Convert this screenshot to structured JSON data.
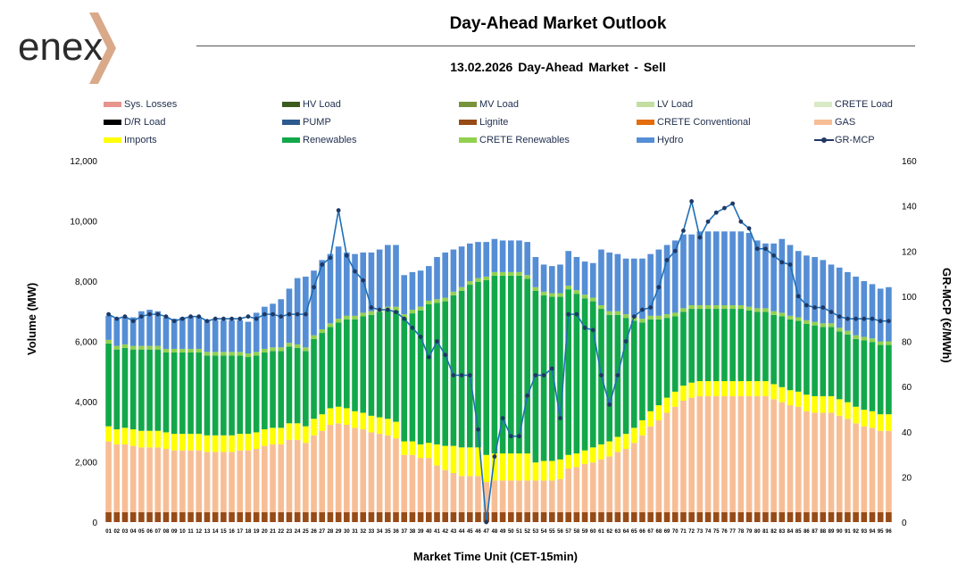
{
  "logo": {
    "text": "enex",
    "accent_color": "#d9a98a"
  },
  "header": {
    "title": "Day-Ahead Market Outlook",
    "subtitle": "13.02.2026  Day-Ahead Market - Sell"
  },
  "chart_data": {
    "type": "bar",
    "stacked": true,
    "title": "13.02.2026  Day-Ahead Market - Sell",
    "xlabel": "Market Time Unit (CET-15min)",
    "ylabel": "Volume (MW)",
    "y2label": "GR-MCP (€/MWh)",
    "ylim": [
      0,
      12000
    ],
    "y2lim": [
      0,
      160
    ],
    "yticks": [
      "0",
      "2,000",
      "4,000",
      "6,000",
      "8,000",
      "10,000",
      "12,000"
    ],
    "y2ticks": [
      "0",
      "20",
      "40",
      "60",
      "80",
      "100",
      "120",
      "140",
      "160"
    ],
    "grid": false,
    "categories": [
      "01",
      "02",
      "03",
      "04",
      "05",
      "06",
      "07",
      "08",
      "09",
      "10",
      "11",
      "12",
      "13",
      "14",
      "15",
      "16",
      "17",
      "18",
      "19",
      "20",
      "21",
      "22",
      "23",
      "24",
      "25",
      "26",
      "27",
      "28",
      "29",
      "30",
      "31",
      "32",
      "33",
      "34",
      "35",
      "36",
      "37",
      "38",
      "39",
      "40",
      "41",
      "42",
      "43",
      "44",
      "45",
      "46",
      "47",
      "48",
      "49",
      "50",
      "51",
      "52",
      "53",
      "54",
      "55",
      "56",
      "57",
      "58",
      "59",
      "60",
      "61",
      "62",
      "63",
      "64",
      "65",
      "66",
      "67",
      "68",
      "69",
      "70",
      "71",
      "72",
      "73",
      "74",
      "75",
      "76",
      "77",
      "78",
      "79",
      "80",
      "81",
      "82",
      "83",
      "84",
      "85",
      "86",
      "87",
      "88",
      "89",
      "90",
      "91",
      "92",
      "93",
      "94",
      "95",
      "96"
    ],
    "legend": [
      {
        "name": "Sys. Losses",
        "color": "#e6948c"
      },
      {
        "name": "HV Load",
        "color": "#3d5a1f"
      },
      {
        "name": "MV Load",
        "color": "#77933c"
      },
      {
        "name": "LV Load",
        "color": "#c3dea0"
      },
      {
        "name": "CRETE Load",
        "color": "#d8eac6"
      },
      {
        "name": "D/R Load",
        "color": "#000000"
      },
      {
        "name": "PUMP",
        "color": "#2e5b8f"
      },
      {
        "name": "Lignite",
        "color": "#974b17"
      },
      {
        "name": "CRETE Conventional",
        "color": "#e46c0a"
      },
      {
        "name": "GAS",
        "color": "#f7be96"
      },
      {
        "name": "Imports",
        "color": "#ffff00"
      },
      {
        "name": "Renewables",
        "color": "#12a84a"
      },
      {
        "name": "CRETE Renewables",
        "color": "#92d050"
      },
      {
        "name": "Hydro",
        "color": "#558ed5"
      },
      {
        "name": "GR-MCP",
        "color": "#1f3864",
        "kind": "line"
      }
    ],
    "series": [
      {
        "name": "Lignite",
        "color": "#974b17",
        "values": [
          330,
          330,
          330,
          330,
          330,
          330,
          330,
          330,
          330,
          330,
          330,
          330,
          330,
          330,
          330,
          330,
          330,
          330,
          330,
          330,
          330,
          330,
          330,
          330,
          330,
          330,
          330,
          330,
          330,
          330,
          330,
          330,
          330,
          330,
          330,
          330,
          330,
          330,
          330,
          330,
          330,
          330,
          330,
          330,
          330,
          330,
          330,
          330,
          330,
          330,
          330,
          330,
          330,
          330,
          330,
          330,
          330,
          330,
          330,
          330,
          330,
          330,
          330,
          330,
          330,
          330,
          330,
          330,
          330,
          330,
          330,
          330,
          330,
          330,
          330,
          330,
          330,
          330,
          330,
          330,
          330,
          330,
          330,
          330,
          330,
          330,
          330,
          330,
          330,
          330,
          330,
          330,
          330,
          330,
          330,
          330
        ]
      },
      {
        "name": "GAS",
        "color": "#f7be96",
        "values": [
          2350,
          2250,
          2250,
          2200,
          2150,
          2150,
          2150,
          2100,
          2050,
          2050,
          2050,
          2050,
          2000,
          2000,
          2000,
          2000,
          2050,
          2050,
          2100,
          2200,
          2250,
          2250,
          2400,
          2400,
          2300,
          2550,
          2700,
          2900,
          2950,
          2900,
          2800,
          2750,
          2650,
          2600,
          2550,
          2450,
          1900,
          1900,
          1800,
          1800,
          1550,
          1400,
          1300,
          1200,
          1200,
          1200,
          1000,
          1050,
          1050,
          1050,
          1050,
          1050,
          1050,
          1050,
          1050,
          1100,
          1450,
          1500,
          1600,
          1650,
          1750,
          1850,
          2000,
          2100,
          2300,
          2550,
          2850,
          3050,
          3300,
          3500,
          3700,
          3800,
          3850,
          3850,
          3850,
          3850,
          3850,
          3850,
          3850,
          3850,
          3850,
          3750,
          3650,
          3550,
          3500,
          3350,
          3300,
          3300,
          3300,
          3200,
          3100,
          2950,
          2850,
          2800,
          2700,
          2700
        ]
      },
      {
        "name": "Imports",
        "color": "#ffff00",
        "values": [
          500,
          500,
          550,
          550,
          550,
          550,
          550,
          550,
          550,
          550,
          550,
          550,
          550,
          550,
          550,
          550,
          550,
          550,
          550,
          550,
          550,
          550,
          550,
          550,
          550,
          550,
          550,
          550,
          550,
          550,
          550,
          550,
          550,
          550,
          550,
          550,
          450,
          450,
          450,
          500,
          700,
          800,
          900,
          950,
          950,
          950,
          900,
          900,
          900,
          900,
          900,
          900,
          600,
          650,
          650,
          650,
          450,
          450,
          450,
          500,
          500,
          500,
          500,
          500,
          500,
          500,
          500,
          500,
          500,
          500,
          500,
          500,
          500,
          500,
          500,
          500,
          500,
          500,
          500,
          500,
          500,
          500,
          500,
          500,
          500,
          550,
          550,
          550,
          550,
          550,
          550,
          550,
          550,
          550,
          550,
          550
        ]
      },
      {
        "name": "Renewables",
        "color": "#12a84a",
        "values": [
          2750,
          2650,
          2650,
          2650,
          2700,
          2700,
          2700,
          2650,
          2700,
          2700,
          2700,
          2700,
          2650,
          2650,
          2650,
          2650,
          2600,
          2550,
          2550,
          2550,
          2550,
          2550,
          2550,
          2500,
          2500,
          2650,
          2700,
          2700,
          2800,
          2950,
          3050,
          3200,
          3350,
          3500,
          3600,
          3700,
          4100,
          4250,
          4450,
          4600,
          4700,
          4800,
          5000,
          5200,
          5400,
          5500,
          5800,
          5900,
          5900,
          5900,
          5900,
          5800,
          5700,
          5500,
          5450,
          5400,
          5500,
          5300,
          5050,
          4850,
          4500,
          4200,
          4050,
          3850,
          3550,
          3250,
          3050,
          2850,
          2650,
          2500,
          2450,
          2450,
          2400,
          2400,
          2400,
          2400,
          2400,
          2400,
          2350,
          2300,
          2300,
          2300,
          2350,
          2350,
          2350,
          2350,
          2350,
          2300,
          2300,
          2250,
          2250,
          2250,
          2300,
          2300,
          2300,
          2300
        ]
      },
      {
        "name": "CRETE Renewables",
        "color": "#92d050",
        "values": [
          120,
          120,
          120,
          120,
          120,
          120,
          120,
          120,
          120,
          120,
          120,
          120,
          120,
          120,
          120,
          120,
          120,
          120,
          120,
          120,
          120,
          120,
          120,
          120,
          120,
          120,
          120,
          120,
          120,
          120,
          120,
          120,
          120,
          120,
          120,
          120,
          120,
          120,
          120,
          120,
          120,
          120,
          120,
          120,
          120,
          120,
          120,
          120,
          120,
          120,
          120,
          120,
          120,
          120,
          120,
          120,
          120,
          120,
          120,
          120,
          120,
          120,
          120,
          120,
          120,
          120,
          120,
          120,
          120,
          120,
          120,
          120,
          120,
          120,
          120,
          120,
          120,
          120,
          120,
          120,
          120,
          120,
          120,
          120,
          120,
          120,
          120,
          120,
          120,
          120,
          120,
          120,
          120,
          120,
          120,
          120
        ]
      },
      {
        "name": "Hydro",
        "color": "#558ed5",
        "values": [
          800,
          900,
          900,
          950,
          1150,
          1200,
          1150,
          1050,
          1000,
          1050,
          1050,
          1050,
          1050,
          1050,
          1050,
          1050,
          1050,
          1050,
          1300,
          1400,
          1450,
          1600,
          1800,
          2200,
          2350,
          2150,
          2300,
          2300,
          2400,
          2100,
          2050,
          2000,
          1950,
          1950,
          2050,
          2050,
          1300,
          1250,
          1200,
          1150,
          1400,
          1500,
          1400,
          1350,
          1250,
          1200,
          1150,
          1100,
          1050,
          1050,
          1050,
          1100,
          1000,
          900,
          900,
          950,
          1150,
          1100,
          1100,
          1150,
          1850,
          1950,
          1900,
          1850,
          1950,
          2000,
          2050,
          2200,
          2300,
          2400,
          2450,
          2350,
          2450,
          2450,
          2450,
          2450,
          2450,
          2450,
          2450,
          2250,
          2150,
          2250,
          2450,
          2350,
          2200,
          2150,
          2150,
          2100,
          1950,
          2000,
          1950,
          1950,
          1850,
          1800,
          1750,
          1800
        ]
      }
    ],
    "line_series": {
      "name": "GR-MCP",
      "axis": "right",
      "color": "#1f3864",
      "values": [
        92,
        90,
        91,
        89,
        91,
        92,
        92,
        91,
        89,
        90,
        91,
        91,
        89,
        90,
        90,
        90,
        90,
        91,
        90,
        92,
        92,
        91,
        92,
        92,
        92,
        104,
        114,
        117,
        138,
        118,
        111,
        107,
        95,
        94,
        94,
        93,
        90,
        86,
        82,
        73,
        80,
        74,
        65,
        65,
        65,
        41,
        0,
        29,
        46,
        38,
        38,
        56,
        65,
        65,
        68,
        46,
        92,
        92,
        86,
        85,
        65,
        52,
        65,
        80,
        91,
        94,
        95,
        104,
        116,
        120,
        129,
        142,
        126,
        133,
        137,
        139,
        141,
        133,
        130,
        121,
        121,
        118,
        115,
        114,
        100,
        96,
        95,
        95,
        93,
        91,
        90,
        90,
        90,
        90,
        89,
        89
      ]
    }
  }
}
